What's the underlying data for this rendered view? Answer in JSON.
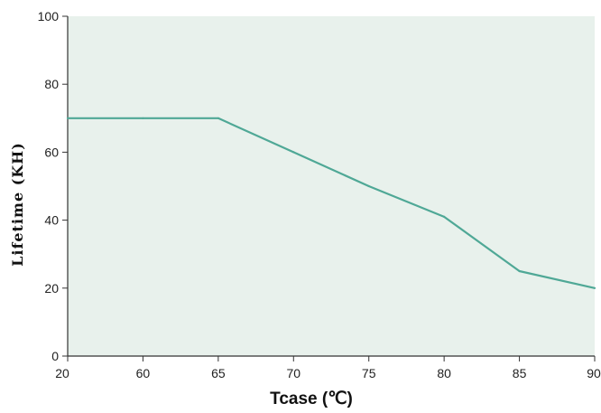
{
  "chart_data": {
    "type": "line",
    "title": "",
    "xlabel": "Tcase (℃)",
    "ylabel": "Lifetime (KH)",
    "x_ticks": [
      "20",
      "60",
      "65",
      "70",
      "75",
      "80",
      "85",
      "90"
    ],
    "y_ticks": [
      0,
      20,
      40,
      60,
      80,
      100
    ],
    "ylim": [
      0,
      100
    ],
    "grid": false,
    "series": [
      {
        "x": [
          "20",
          "60",
          "65",
          "70",
          "75",
          "80",
          "85",
          "90"
        ],
        "values": [
          70,
          70,
          70,
          60,
          50,
          41,
          25,
          20
        ]
      }
    ],
    "colors": {
      "plot_background": "#e8f1ec",
      "line": "#4fa896",
      "axis": "#333333"
    }
  }
}
